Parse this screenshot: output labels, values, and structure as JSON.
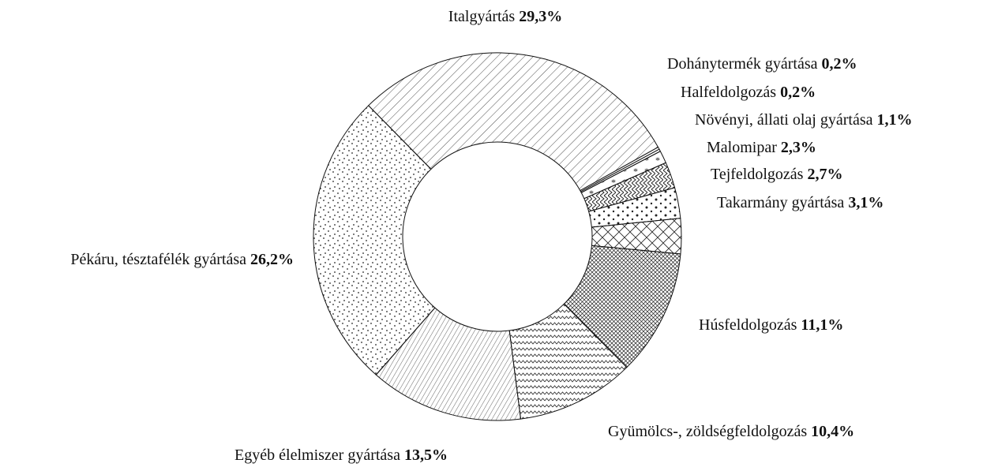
{
  "chart_data": {
    "type": "donut",
    "categories": [
      "Italgyártás",
      "Dohánytermék gyártása",
      "Halfeldolgozás",
      "Növényi, állati olaj gyártása",
      "Malomipar",
      "Tejfeldolgozás",
      "Takarmány gyártása",
      "Húsfeldolgozás",
      "Gyümölcs-, zöldségfeldolgozás",
      "Egyéb élelmiszer gyártása",
      "Pékáru, tésztafélék gyártása"
    ],
    "values": [
      29.3,
      0.2,
      0.2,
      1.1,
      2.3,
      2.7,
      3.1,
      11.1,
      10.4,
      13.5,
      26.2
    ],
    "value_labels": [
      "29,3%",
      "0,2%",
      "0,2%",
      "1,1%",
      "2,3%",
      "2,7%",
      "3,1%",
      "11,1%",
      "10,4%",
      "13,5%",
      "26,2%"
    ]
  }
}
